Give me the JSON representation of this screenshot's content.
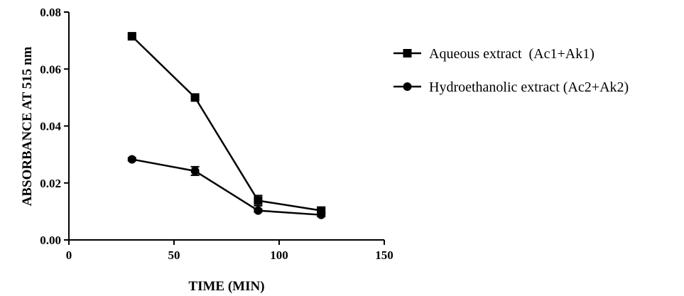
{
  "chart_data": {
    "type": "line",
    "xlabel": "TIME (MIN)",
    "ylabel": "ABSORBANCE AT 515 nm",
    "xlim": [
      0,
      150
    ],
    "ylim": [
      0,
      0.08
    ],
    "x_ticks": [
      0,
      50,
      100,
      150
    ],
    "x_tick_labels": [
      "0",
      "50",
      "100",
      "150"
    ],
    "y_ticks": [
      0,
      0.02,
      0.04,
      0.06,
      0.08
    ],
    "y_tick_labels": [
      "0.00",
      "0.02",
      "0.04",
      "0.06",
      "0.08"
    ],
    "grid": false,
    "legend_position": "right",
    "series": [
      {
        "name": "Aqueous extract  (Ac1+Ak1)",
        "marker": "square",
        "color": "#000000",
        "points": [
          {
            "x": 30,
            "y": 0.0715,
            "err": 0.0005
          },
          {
            "x": 60,
            "y": 0.05,
            "err": 0.0005
          },
          {
            "x": 90,
            "y": 0.0138,
            "err": 0.0018
          },
          {
            "x": 120,
            "y": 0.0103,
            "err": 0.0005
          }
        ]
      },
      {
        "name": "Hydroethanolic extract (Ac2+Ak2)",
        "marker": "circle",
        "color": "#000000",
        "points": [
          {
            "x": 30,
            "y": 0.0283,
            "err": 0.0005
          },
          {
            "x": 60,
            "y": 0.0242,
            "err": 0.0015
          },
          {
            "x": 90,
            "y": 0.0103,
            "err": 0.0005
          },
          {
            "x": 120,
            "y": 0.0088,
            "err": 0.0006
          }
        ]
      }
    ]
  }
}
